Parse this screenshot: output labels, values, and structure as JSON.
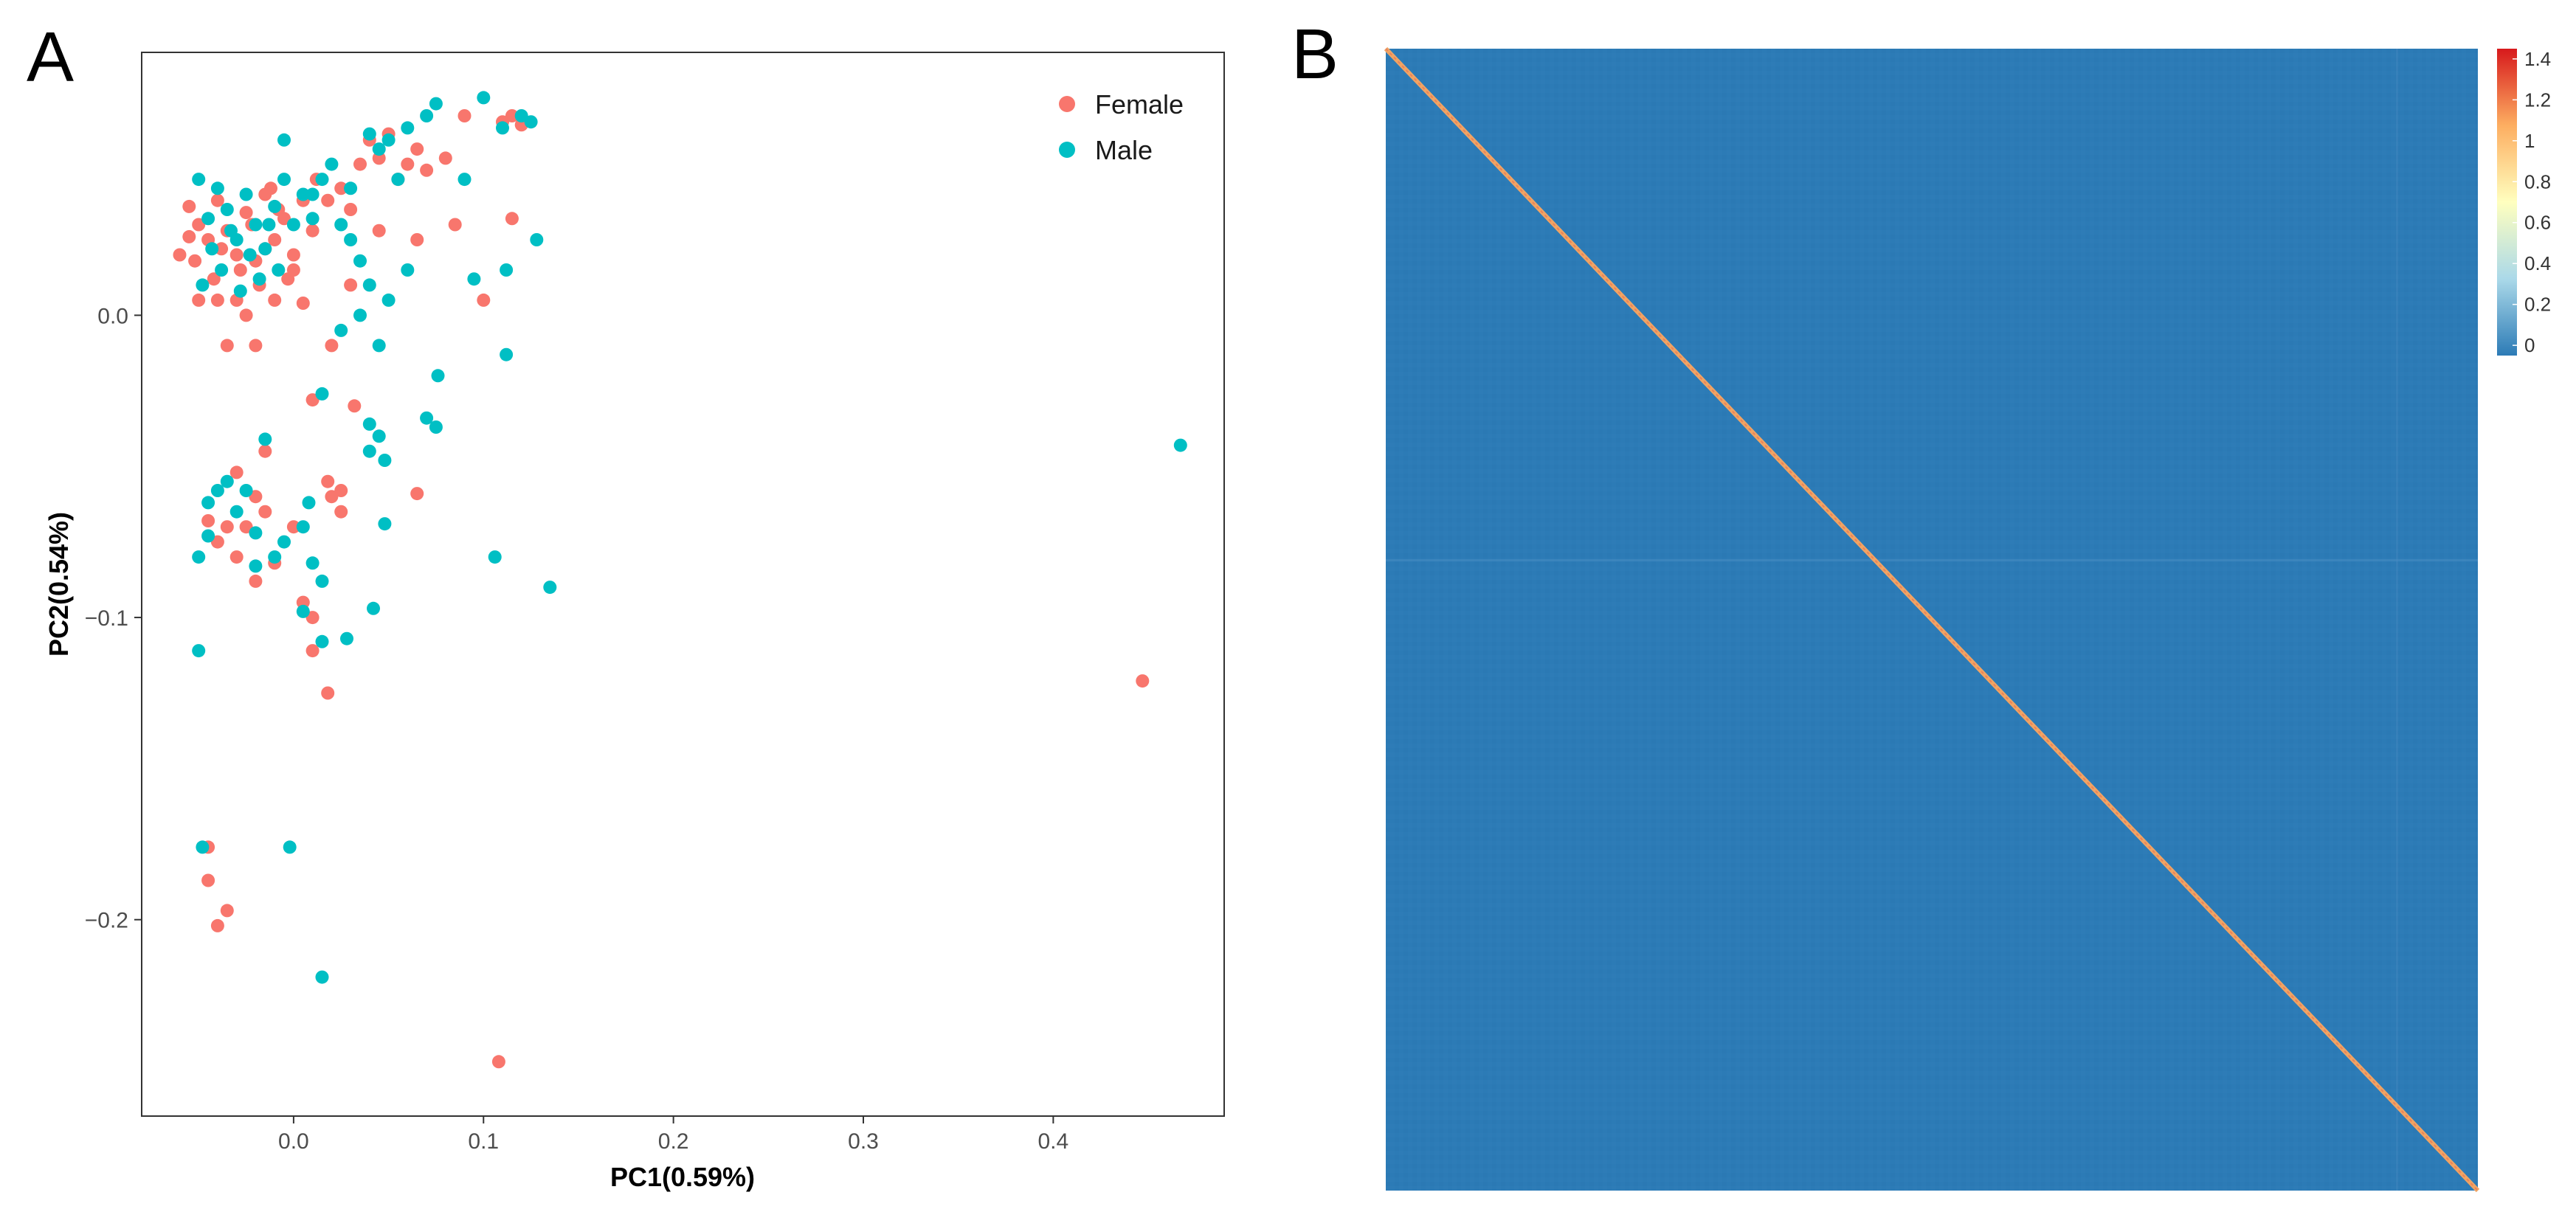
{
  "panels": [
    {
      "letter": "A"
    },
    {
      "letter": "B"
    }
  ],
  "colors": {
    "female": "#F8766D",
    "male": "#00BFC4",
    "heatmap_scale": [
      "#2C7BB6",
      "#ABD9E9",
      "#FFFFBF",
      "#FDAE61",
      "#D7191C"
    ]
  },
  "chart_data": [
    {
      "type": "scatter",
      "panel": "A",
      "xlabel": "PC1(0.59%)",
      "ylabel": "PC2(0.54%)",
      "xlim": [
        -0.08,
        0.49
      ],
      "ylim": [
        -0.265,
        0.087
      ],
      "x_ticks": [
        {
          "value": 0.0,
          "label": "0.0"
        },
        {
          "value": 0.1,
          "label": "0.1"
        },
        {
          "value": 0.2,
          "label": "0.2"
        },
        {
          "value": 0.3,
          "label": "0.3"
        },
        {
          "value": 0.4,
          "label": "0.4"
        }
      ],
      "y_ticks": [
        {
          "value": 0.0,
          "label": "0.0"
        },
        {
          "value": -0.1,
          "label": "−0.1"
        },
        {
          "value": -0.2,
          "label": "−0.2"
        }
      ],
      "grid": false,
      "legend_position": "top-right",
      "series": [
        {
          "name": "Female",
          "color": "#F8766D",
          "points": [
            [
              -0.055,
              0.036
            ],
            [
              -0.05,
              0.03
            ],
            [
              -0.045,
              0.025
            ],
            [
              -0.04,
              0.038
            ],
            [
              -0.035,
              0.028
            ],
            [
              -0.03,
              0.02
            ],
            [
              -0.025,
              0.034
            ],
            [
              -0.02,
              0.018
            ],
            [
              -0.015,
              0.04
            ],
            [
              -0.01,
              0.025
            ],
            [
              -0.005,
              0.032
            ],
            [
              0.0,
              0.02
            ],
            [
              0.005,
              0.038
            ],
            [
              0.01,
              0.028
            ],
            [
              -0.052,
              0.018
            ],
            [
              -0.042,
              0.012
            ],
            [
              -0.038,
              0.022
            ],
            [
              -0.028,
              0.015
            ],
            [
              -0.022,
              0.03
            ],
            [
              -0.018,
              0.01
            ],
            [
              -0.012,
              0.042
            ],
            [
              -0.008,
              0.035
            ],
            [
              -0.003,
              0.012
            ],
            [
              0.012,
              0.045
            ],
            [
              0.018,
              0.038
            ],
            [
              0.025,
              0.042
            ],
            [
              0.03,
              0.035
            ],
            [
              0.035,
              0.05
            ],
            [
              0.04,
              0.058
            ],
            [
              0.045,
              0.052
            ],
            [
              0.05,
              0.06
            ],
            [
              0.055,
              0.045
            ],
            [
              0.06,
              0.05
            ],
            [
              0.065,
              0.055
            ],
            [
              0.07,
              0.048
            ],
            [
              0.08,
              0.052
            ],
            [
              0.09,
              0.066
            ],
            [
              0.11,
              0.064
            ],
            [
              0.115,
              0.066
            ],
            [
              0.12,
              0.063
            ],
            [
              -0.04,
              0.005
            ],
            [
              -0.035,
              -0.01
            ],
            [
              -0.025,
              0.0
            ],
            [
              -0.02,
              -0.01
            ],
            [
              -0.01,
              0.005
            ],
            [
              0.0,
              0.015
            ],
            [
              0.02,
              -0.01
            ],
            [
              0.03,
              0.01
            ],
            [
              0.045,
              0.028
            ],
            [
              0.065,
              0.025
            ],
            [
              0.085,
              0.03
            ],
            [
              0.1,
              0.005
            ],
            [
              0.115,
              0.032
            ],
            [
              0.01,
              -0.028
            ],
            [
              0.032,
              -0.03
            ],
            [
              0.018,
              -0.055
            ],
            [
              0.025,
              -0.058
            ],
            [
              0.065,
              -0.059
            ],
            [
              -0.045,
              -0.068
            ],
            [
              -0.04,
              -0.075
            ],
            [
              -0.035,
              -0.07
            ],
            [
              -0.03,
              -0.08
            ],
            [
              -0.025,
              -0.07
            ],
            [
              -0.02,
              -0.06
            ],
            [
              -0.015,
              -0.065
            ],
            [
              -0.03,
              -0.052
            ],
            [
              -0.02,
              -0.088
            ],
            [
              -0.015,
              -0.045
            ],
            [
              -0.01,
              -0.082
            ],
            [
              0.0,
              -0.07
            ],
            [
              0.005,
              -0.095
            ],
            [
              0.01,
              -0.1
            ],
            [
              0.01,
              -0.111
            ],
            [
              0.018,
              -0.125
            ],
            [
              0.02,
              -0.06
            ],
            [
              0.025,
              -0.065
            ],
            [
              -0.045,
              -0.176
            ],
            [
              -0.045,
              -0.187
            ],
            [
              -0.04,
              -0.202
            ],
            [
              -0.035,
              -0.197
            ],
            [
              0.108,
              -0.247
            ],
            [
              0.447,
              -0.121
            ],
            [
              -0.05,
              0.005
            ],
            [
              -0.03,
              0.005
            ],
            [
              0.005,
              0.004
            ],
            [
              -0.015,
              0.022
            ],
            [
              -0.06,
              0.02
            ],
            [
              -0.055,
              0.026
            ]
          ]
        },
        {
          "name": "Male",
          "color": "#00BFC4",
          "points": [
            [
              -0.05,
              0.045
            ],
            [
              -0.045,
              0.032
            ],
            [
              -0.04,
              0.042
            ],
            [
              -0.035,
              0.035
            ],
            [
              -0.03,
              0.025
            ],
            [
              -0.025,
              0.04
            ],
            [
              -0.02,
              0.03
            ],
            [
              -0.015,
              0.022
            ],
            [
              -0.01,
              0.036
            ],
            [
              -0.005,
              0.045
            ],
            [
              0.0,
              0.03
            ],
            [
              0.005,
              0.04
            ],
            [
              0.01,
              0.032
            ],
            [
              0.015,
              0.045
            ],
            [
              -0.048,
              0.01
            ],
            [
              -0.043,
              0.022
            ],
            [
              -0.038,
              0.015
            ],
            [
              -0.033,
              0.028
            ],
            [
              -0.028,
              0.008
            ],
            [
              -0.023,
              0.02
            ],
            [
              -0.018,
              0.012
            ],
            [
              -0.013,
              0.03
            ],
            [
              -0.008,
              0.015
            ],
            [
              0.02,
              0.05
            ],
            [
              0.03,
              0.042
            ],
            [
              0.04,
              0.06
            ],
            [
              0.045,
              0.055
            ],
            [
              0.05,
              0.058
            ],
            [
              0.055,
              0.045
            ],
            [
              0.06,
              0.062
            ],
            [
              0.07,
              0.066
            ],
            [
              0.075,
              0.07
            ],
            [
              0.09,
              0.045
            ],
            [
              0.1,
              0.072
            ],
            [
              0.11,
              0.062
            ],
            [
              0.12,
              0.066
            ],
            [
              0.125,
              0.064
            ],
            [
              -0.005,
              0.058
            ],
            [
              0.01,
              0.04
            ],
            [
              0.025,
              0.03
            ],
            [
              0.03,
              0.025
            ],
            [
              0.035,
              0.018
            ],
            [
              0.04,
              0.01
            ],
            [
              0.05,
              0.005
            ],
            [
              0.06,
              0.015
            ],
            [
              0.045,
              -0.01
            ],
            [
              0.035,
              0.0
            ],
            [
              0.025,
              -0.005
            ],
            [
              0.095,
              0.012
            ],
            [
              0.112,
              0.015
            ],
            [
              0.128,
              0.025
            ],
            [
              0.112,
              -0.013
            ],
            [
              0.076,
              -0.02
            ],
            [
              0.04,
              -0.036
            ],
            [
              0.048,
              -0.048
            ],
            [
              0.045,
              -0.04
            ],
            [
              0.07,
              -0.034
            ],
            [
              0.075,
              -0.037
            ],
            [
              0.04,
              -0.045
            ],
            [
              0.015,
              -0.026
            ],
            [
              -0.045,
              -0.062
            ],
            [
              -0.04,
              -0.058
            ],
            [
              -0.035,
              -0.055
            ],
            [
              -0.03,
              -0.065
            ],
            [
              -0.025,
              -0.058
            ],
            [
              -0.02,
              -0.072
            ],
            [
              -0.015,
              -0.041
            ],
            [
              -0.01,
              -0.08
            ],
            [
              -0.005,
              -0.075
            ],
            [
              0.005,
              -0.07
            ],
            [
              0.01,
              -0.082
            ],
            [
              0.015,
              -0.088
            ],
            [
              0.005,
              -0.098
            ],
            [
              0.015,
              -0.108
            ],
            [
              0.028,
              -0.107
            ],
            [
              0.042,
              -0.097
            ],
            [
              0.048,
              -0.069
            ],
            [
              0.106,
              -0.08
            ],
            [
              0.135,
              -0.09
            ],
            [
              0.467,
              -0.043
            ],
            [
              -0.05,
              -0.111
            ],
            [
              -0.048,
              -0.176
            ],
            [
              -0.002,
              -0.176
            ],
            [
              0.015,
              -0.219
            ],
            [
              -0.05,
              -0.08
            ],
            [
              -0.045,
              -0.073
            ],
            [
              -0.02,
              -0.083
            ],
            [
              0.008,
              -0.062
            ]
          ]
        }
      ]
    },
    {
      "type": "heatmap",
      "panel": "B",
      "description_values": "relatedness matrix: near 0 off-diagonal, near 1 on the diagonal",
      "off_diagonal_value": 0,
      "diagonal_value": 1,
      "colorbar_ticks": [
        {
          "value": 1.4,
          "label": "1.4"
        },
        {
          "value": 1.2,
          "label": "1.2"
        },
        {
          "value": 1.0,
          "label": "1"
        },
        {
          "value": 0.8,
          "label": "0.8"
        },
        {
          "value": 0.6,
          "label": "0.6"
        },
        {
          "value": 0.4,
          "label": "0.4"
        },
        {
          "value": 0.2,
          "label": "0.2"
        },
        {
          "value": 0.0,
          "label": "0"
        }
      ],
      "colorbar_range": [
        -0.05,
        1.45
      ]
    }
  ]
}
